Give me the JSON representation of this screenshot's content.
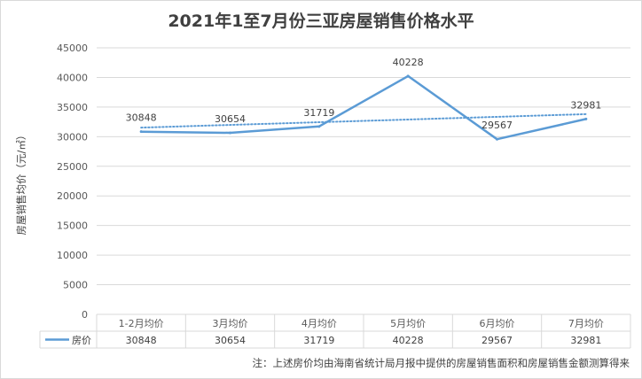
{
  "chart_data": {
    "type": "line",
    "title": "2021年1至7月份三亚房屋销售价格水平",
    "ylabel": "房屋销售均价（元/㎡）",
    "xlabel": "",
    "categories": [
      "1-2月均价",
      "3月均价",
      "4月均价",
      "5月均价",
      "6月均价",
      "7月均价"
    ],
    "series": [
      {
        "name": "房价",
        "values": [
          30848,
          30654,
          31719,
          40228,
          29567,
          32981
        ]
      }
    ],
    "trendline": {
      "type": "linear",
      "style": "dotted",
      "of_series": "房价"
    },
    "ylim": [
      0,
      45000
    ],
    "yticks": [
      0,
      5000,
      10000,
      15000,
      20000,
      25000,
      30000,
      35000,
      40000,
      45000
    ],
    "grid": true,
    "legend": "data-table-left",
    "data_labels": true,
    "data_table": true,
    "colors": {
      "series": "#5b9bd5",
      "trend": "#5b9bd5",
      "grid": "#d9d9d9",
      "text": "#404040"
    },
    "note": "注：上述房价均由海南省统计局月报中提供的房屋销售面积和房屋销售金额测算得来"
  }
}
